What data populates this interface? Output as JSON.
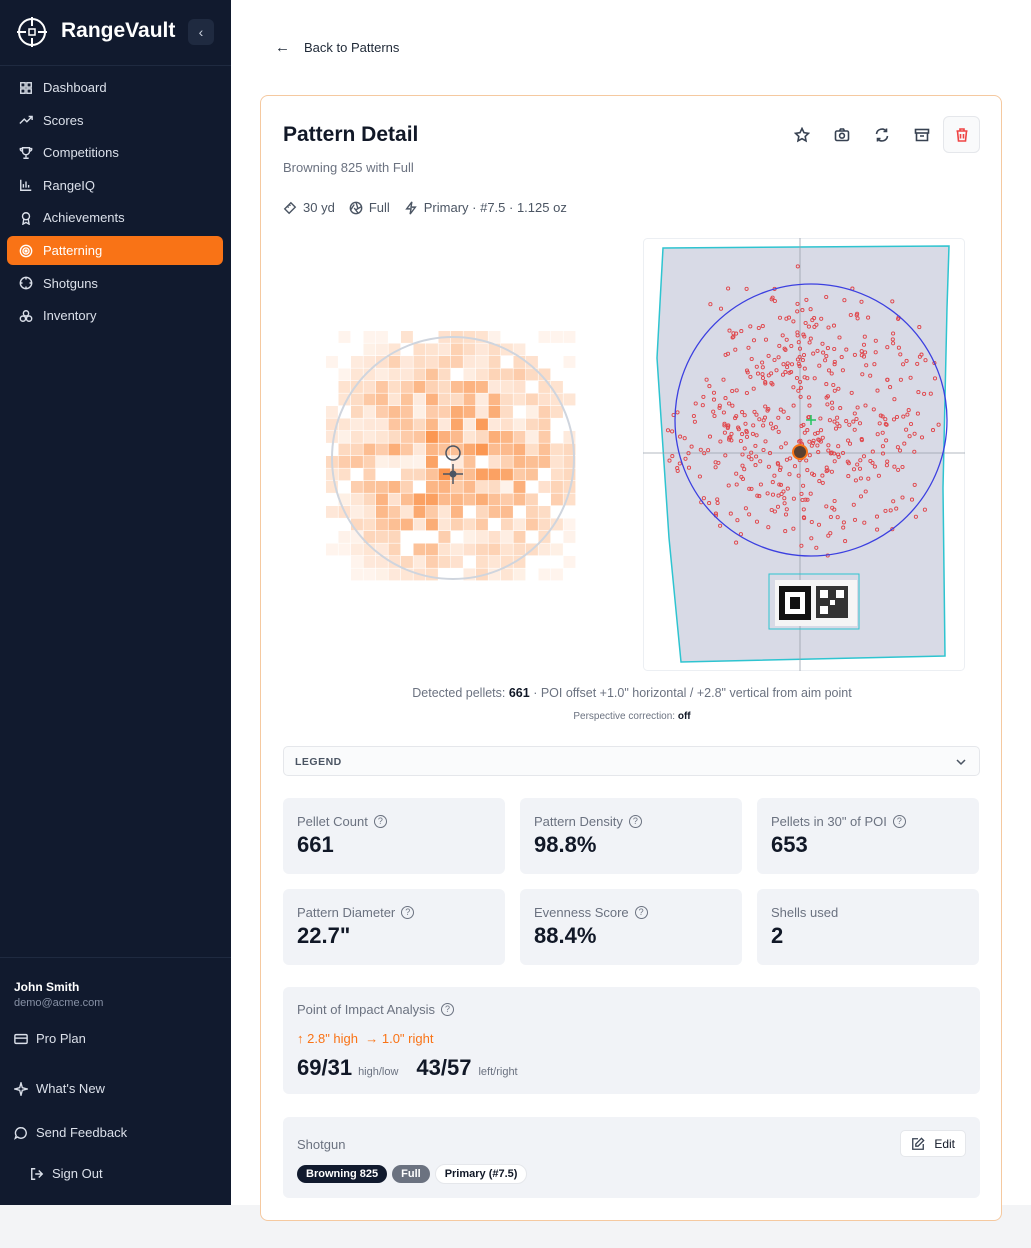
{
  "sidebar": {
    "brand": "RangeVault",
    "nav": [
      "Dashboard",
      "Scores",
      "Competitions",
      "RangeIQ",
      "Achievements",
      "Patterning",
      "Shotguns",
      "Inventory"
    ],
    "user": {
      "name": "John Smith",
      "email": "demo@acme.com"
    },
    "links": [
      "Pro Plan",
      "What's New",
      "Send Feedback",
      "Sign Out"
    ]
  },
  "back": "Back to Patterns",
  "detail": {
    "title": "Pattern Detail",
    "subtitle": "Browning 825 with Full",
    "meta": [
      "30 yd",
      "Full",
      "Primary · #7.5 · 1.125 oz"
    ],
    "caption": {
      "lead": "Detected pellets:",
      "count": "661",
      "rest": "· POI offset +1.0\" horizontal / +2.8\" vertical from aim point"
    },
    "perspective": {
      "label": "Perspective correction:",
      "value": "off"
    },
    "legend": "LEGEND",
    "stats": [
      {
        "label": "Pellet Count",
        "value": "661"
      },
      {
        "label": "Pattern Density",
        "value": "98.8%"
      },
      {
        "label": "Pellets in 30\" of POI",
        "value": "653"
      },
      {
        "label": "Pattern Diameter",
        "value": "22.7\""
      },
      {
        "label": "Evenness Score",
        "value": "88.4%"
      },
      {
        "label": "Shells used",
        "value": "2"
      }
    ],
    "poi": {
      "title": "Point of Impact Analysis",
      "high": "2.8\" high",
      "right": "1.0\" right",
      "vertical": {
        "value": "69/31",
        "unit": "high/low"
      },
      "horizontal": {
        "value": "43/57",
        "unit": "left/right"
      }
    },
    "shotgun": {
      "title": "Shotgun",
      "edit": "Edit",
      "tags": [
        "Browning 825",
        "Full",
        "Primary (#7.5)"
      ]
    }
  }
}
